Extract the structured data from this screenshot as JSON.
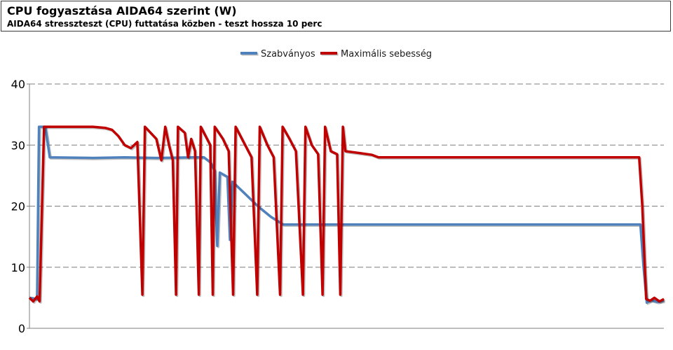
{
  "header": {
    "title": "CPU fogyasztása AIDA64 szerint (W)",
    "subtitle": "AIDA64 stresszteszt (CPU) futtatása közben - teszt hossza 10 perc"
  },
  "chart_data": {
    "type": "line",
    "title": "CPU fogyasztása AIDA64 szerint (W)",
    "subtitle": "AIDA64 stresszteszt (CPU) futtatása közben - teszt hossza 10 perc",
    "xlabel": "",
    "ylabel": "",
    "ylim": [
      0,
      40
    ],
    "yticks": [
      0,
      10,
      20,
      30,
      40
    ],
    "xlim": [
      0,
      100
    ],
    "grid": "horizontal-dashed",
    "legend": "top-center",
    "series": [
      {
        "name": "Szabványos",
        "color": "#4f81bd",
        "points": [
          [
            0,
            5
          ],
          [
            1.2,
            4.8
          ],
          [
            1.5,
            33
          ],
          [
            2.5,
            33
          ],
          [
            3.2,
            28
          ],
          [
            10,
            27.9
          ],
          [
            15,
            28
          ],
          [
            20,
            27.9
          ],
          [
            26,
            28
          ],
          [
            27.5,
            28
          ],
          [
            28.5,
            27.2
          ],
          [
            29.2,
            25.8
          ],
          [
            29.6,
            13.5
          ],
          [
            30,
            25.5
          ],
          [
            31.2,
            24.8
          ],
          [
            31.6,
            14.5
          ],
          [
            32,
            24
          ],
          [
            34,
            22
          ],
          [
            36,
            20
          ],
          [
            38,
            18.3
          ],
          [
            40,
            17
          ],
          [
            45,
            17
          ],
          [
            55,
            17
          ],
          [
            70,
            17
          ],
          [
            85,
            17
          ],
          [
            96.3,
            17
          ],
          [
            96.8,
            10
          ],
          [
            97.3,
            4.2
          ],
          [
            98,
            4.6
          ],
          [
            99,
            4.3
          ],
          [
            100,
            4.5
          ]
        ]
      },
      {
        "name": "Maximális sebesség",
        "color": "#c00000",
        "points": [
          [
            0,
            5
          ],
          [
            0.6,
            4.4
          ],
          [
            1.2,
            5.2
          ],
          [
            1.6,
            4.4
          ],
          [
            2.3,
            33
          ],
          [
            5,
            33
          ],
          [
            10,
            33
          ],
          [
            12,
            32.8
          ],
          [
            13,
            32.5
          ],
          [
            14,
            31.5
          ],
          [
            15,
            30
          ],
          [
            16,
            29.5
          ],
          [
            17,
            30.5
          ],
          [
            17.8,
            5.5
          ],
          [
            18.2,
            33
          ],
          [
            20,
            31
          ],
          [
            20.8,
            27.5
          ],
          [
            21.4,
            33
          ],
          [
            22,
            30
          ],
          [
            22.6,
            27.5
          ],
          [
            23.1,
            5.5
          ],
          [
            23.4,
            33
          ],
          [
            24.5,
            32
          ],
          [
            25,
            28
          ],
          [
            25.5,
            31
          ],
          [
            26.1,
            29
          ],
          [
            26.7,
            5.5
          ],
          [
            27,
            33
          ],
          [
            28.5,
            30
          ],
          [
            28.9,
            5.5
          ],
          [
            29.2,
            33
          ],
          [
            30.5,
            31
          ],
          [
            31.4,
            29
          ],
          [
            32.1,
            5.5
          ],
          [
            32.5,
            33
          ],
          [
            34,
            30
          ],
          [
            35,
            28
          ],
          [
            35.9,
            5.5
          ],
          [
            36.3,
            33
          ],
          [
            37.5,
            30
          ],
          [
            38.5,
            28
          ],
          [
            39.5,
            5.5
          ],
          [
            39.9,
            33
          ],
          [
            41,
            31
          ],
          [
            42,
            29
          ],
          [
            43.1,
            5.5
          ],
          [
            43.5,
            33
          ],
          [
            44.5,
            30
          ],
          [
            45.5,
            28.5
          ],
          [
            46.2,
            5.5
          ],
          [
            46.6,
            33
          ],
          [
            47.5,
            29
          ],
          [
            48.5,
            28.5
          ],
          [
            49,
            5.5
          ],
          [
            49.4,
            33
          ],
          [
            49.8,
            29
          ],
          [
            52,
            28.7
          ],
          [
            54,
            28.4
          ],
          [
            55,
            28
          ],
          [
            60,
            28
          ],
          [
            70,
            28
          ],
          [
            80,
            28
          ],
          [
            90,
            28
          ],
          [
            96.1,
            28
          ],
          [
            96.6,
            20
          ],
          [
            97.2,
            4.8
          ],
          [
            97.8,
            4.5
          ],
          [
            98.5,
            5
          ],
          [
            99.3,
            4.4
          ],
          [
            100,
            4.8
          ]
        ]
      }
    ]
  }
}
